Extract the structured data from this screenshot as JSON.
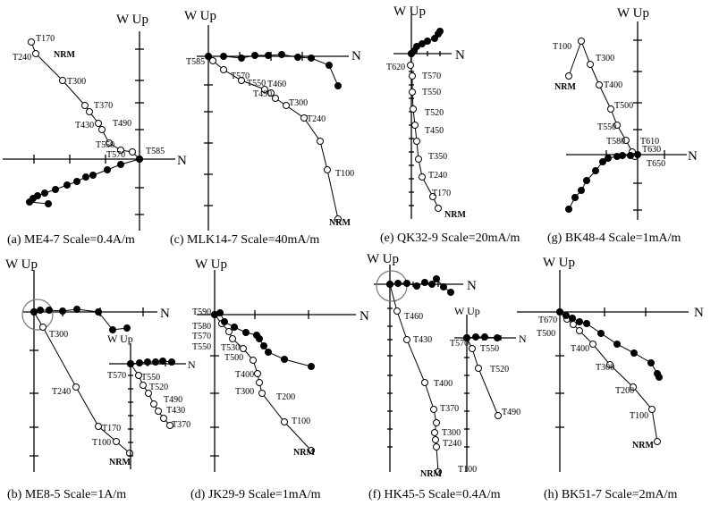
{
  "axis_labels": {
    "up": "W Up",
    "north": "N"
  },
  "panels": [
    {
      "id": "a",
      "caption": "(a) ME4-7  Scale=0.4A/m",
      "steps": [
        "T170",
        "T240",
        "NRM",
        "T300",
        "T370",
        "T430",
        "T490",
        "T550",
        "T570",
        "T585"
      ]
    },
    {
      "id": "c",
      "caption": "(c) MLK14-7 Scale=40mA/m",
      "steps": [
        "T585",
        "T570",
        "T550",
        "T460",
        "T490",
        "T300",
        "T240",
        "T100",
        "NRM"
      ]
    },
    {
      "id": "e",
      "caption": "(e) QK32-9  Scale=20mA/m",
      "steps": [
        "T620",
        "T570",
        "T550",
        "T520",
        "T450",
        "T350",
        "T240",
        "T170",
        "NRM"
      ]
    },
    {
      "id": "g",
      "caption": "(g) BK48-4  Scale=1mA/m",
      "steps": [
        "T100",
        "NRM",
        "T300",
        "T400",
        "T500",
        "T550",
        "T580",
        "T610",
        "T630",
        "T650"
      ]
    },
    {
      "id": "b",
      "caption": "(b) ME8-5  Scale=1A/m",
      "steps": [
        "T300",
        "T240",
        "T170",
        "T100",
        "NRM"
      ],
      "inset_steps": [
        "T570",
        "T550",
        "T520",
        "T490",
        "T430",
        "T370"
      ]
    },
    {
      "id": "d",
      "caption": "(d) JK29-9  Scale=1mA/m",
      "steps": [
        "T590",
        "T580",
        "T570",
        "T550",
        "T530",
        "T500",
        "T400",
        "T300",
        "T200",
        "T100",
        "NRM"
      ]
    },
    {
      "id": "f",
      "caption": "(f) HK45-5  Scale=0.4A/m",
      "steps": [
        "T460",
        "T430",
        "T400",
        "T370",
        "T300",
        "T240",
        "NRM",
        "T100"
      ],
      "inset_steps": [
        "T570",
        "T550",
        "T520",
        "T490"
      ]
    },
    {
      "id": "h",
      "caption": "(h) BK51-7  Scale=2mA/m",
      "steps": [
        "T670",
        "T500",
        "T400",
        "T300",
        "T200",
        "T100",
        "NRM"
      ]
    }
  ]
}
